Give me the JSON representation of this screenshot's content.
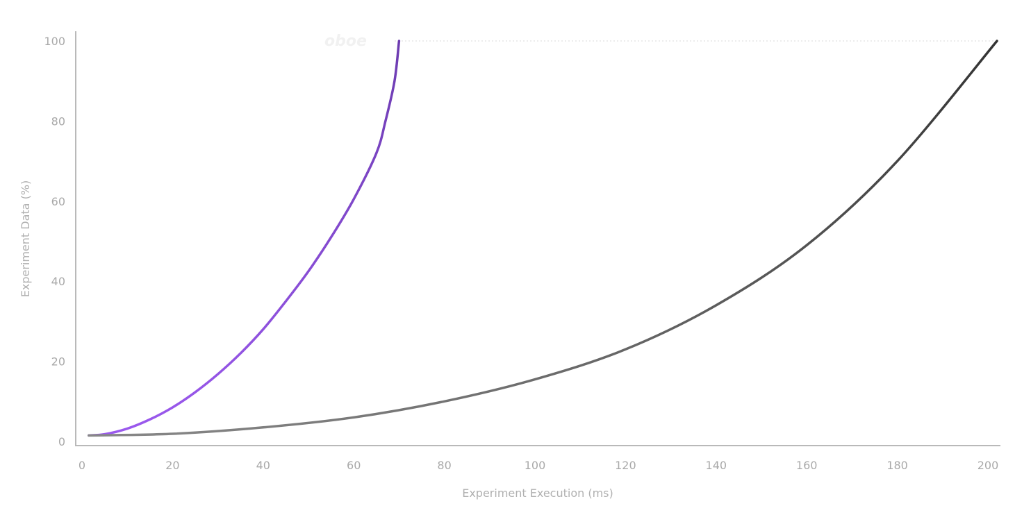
{
  "watermark_text": "oboe",
  "chart_data": {
    "type": "line",
    "xlabel": "Experiment Execution (ms)",
    "ylabel": "Experiment Data (%)",
    "xlim": [
      0,
      202
    ],
    "ylim": [
      0,
      100
    ],
    "x_ticks": [
      "0",
      "20",
      "40",
      "60",
      "80",
      "100",
      "120",
      "140",
      "160",
      "180",
      "200"
    ],
    "y_ticks": [
      "0",
      "20",
      "40",
      "60",
      "80",
      "100"
    ],
    "grid": false,
    "legend": "none",
    "series": [
      {
        "color_start": "#9b59ee",
        "color_end": "#6c3bb0",
        "points": [
          [
            1.5,
            1.5
          ],
          [
            5,
            1.8
          ],
          [
            10,
            3.2
          ],
          [
            15,
            5.5
          ],
          [
            20,
            8.5
          ],
          [
            25,
            12.3
          ],
          [
            30,
            16.8
          ],
          [
            35,
            22
          ],
          [
            40,
            28
          ],
          [
            45,
            35
          ],
          [
            50,
            42.5
          ],
          [
            55,
            51
          ],
          [
            60,
            60.5
          ],
          [
            65,
            72
          ],
          [
            67,
            80
          ],
          [
            69,
            90
          ],
          [
            70,
            100
          ]
        ]
      },
      {
        "color_start": "#888888",
        "color_end": "#333333",
        "points": [
          [
            1.5,
            1.5
          ],
          [
            20,
            1.9
          ],
          [
            40,
            3.5
          ],
          [
            60,
            6
          ],
          [
            80,
            10
          ],
          [
            100,
            15.5
          ],
          [
            120,
            23
          ],
          [
            140,
            34
          ],
          [
            160,
            49
          ],
          [
            180,
            70
          ],
          [
            202,
            100
          ]
        ]
      }
    ]
  }
}
